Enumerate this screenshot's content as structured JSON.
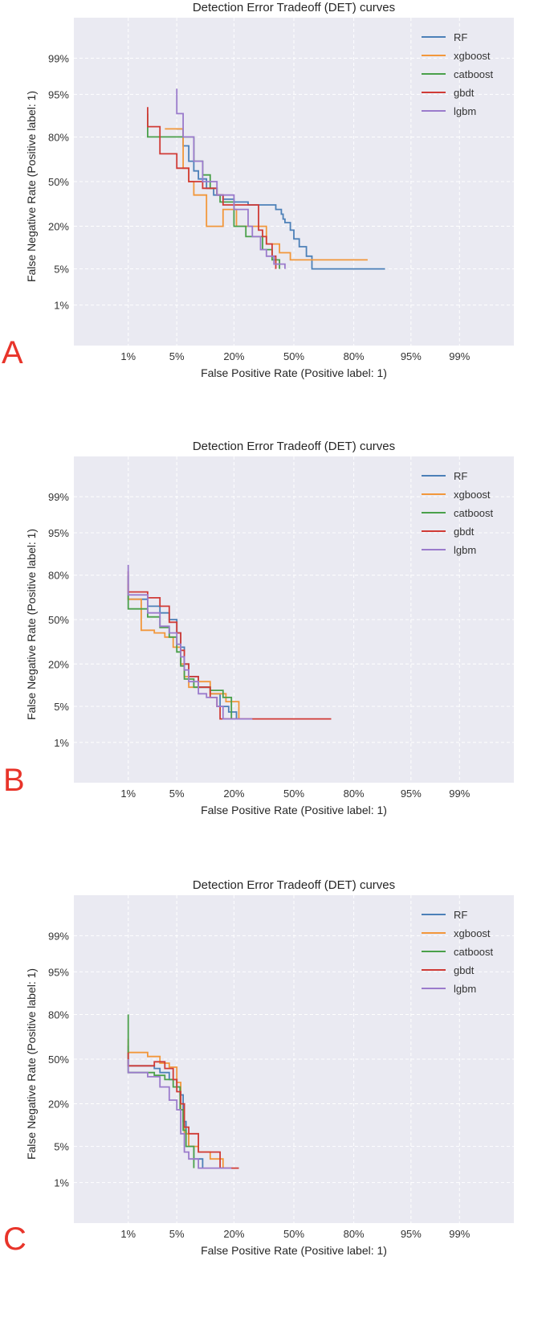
{
  "colors": {
    "RF": "#4c80b8",
    "xgboost": "#f2973b",
    "catboost": "#4aa04a",
    "gbdt": "#d03b36",
    "lgbm": "#9b7bcc",
    "panel_label": "#e8342a",
    "plot_bg": "#eaeaf2",
    "grid": "#ffffff"
  },
  "chart_data": [
    {
      "panel": "A",
      "type": "line",
      "title": "Detection Error Tradeoff (DET) curves",
      "xlabel": "False Positive Rate (Positive label: 1)",
      "ylabel": "False Negative Rate (Positive label: 1)",
      "xticks": [
        "1%",
        "5%",
        "20%",
        "50%",
        "80%",
        "95%",
        "99%"
      ],
      "yticks": [
        "1%",
        "5%",
        "20%",
        "50%",
        "80%",
        "95%",
        "99%"
      ],
      "xlim": [
        0.1,
        99.9
      ],
      "ylim": [
        0.1,
        99.9
      ],
      "scale": "probit",
      "grid": true,
      "legend": "top-right",
      "series": [
        {
          "name": "RF",
          "x": [
            5,
            6,
            6,
            7,
            7,
            8,
            8,
            9,
            9,
            11,
            11,
            13,
            13,
            16,
            16,
            20,
            20,
            26,
            26,
            40,
            40,
            43,
            43,
            44,
            44,
            45,
            45,
            48,
            48,
            50,
            50,
            53,
            53,
            57,
            57,
            60,
            60,
            90
          ],
          "y": [
            84,
            84,
            75,
            75,
            65,
            65,
            58,
            58,
            52,
            52,
            45,
            45,
            40,
            40,
            37,
            37,
            35,
            35,
            33,
            33,
            30,
            30,
            27,
            27,
            24,
            24,
            22,
            22,
            18,
            18,
            14,
            14,
            11,
            11,
            8,
            8,
            5,
            5
          ]
        },
        {
          "name": "xgboost",
          "x": [
            3.5,
            6,
            6,
            7,
            7,
            8,
            8,
            11,
            11,
            16,
            16,
            21,
            21,
            35,
            35,
            42,
            42,
            48,
            48,
            85
          ],
          "y": [
            84,
            84,
            60,
            60,
            50,
            50,
            40,
            40,
            20,
            20,
            30,
            30,
            20,
            20,
            12,
            12,
            9,
            9,
            7,
            7
          ]
        },
        {
          "name": "catboost",
          "x": [
            2,
            2,
            8,
            8,
            10,
            10,
            12,
            12,
            14,
            14,
            15,
            15,
            20,
            20,
            25,
            25,
            33,
            33,
            38,
            38,
            42,
            42
          ],
          "y": [
            90,
            80,
            80,
            65,
            65,
            55,
            55,
            45,
            45,
            40,
            40,
            35,
            35,
            20,
            20,
            15,
            15,
            10,
            10,
            7,
            7,
            5
          ]
        },
        {
          "name": "gbdt",
          "x": [
            2,
            2,
            3,
            3,
            5,
            5,
            7,
            7,
            10,
            10,
            14,
            14,
            16,
            16,
            31,
            31,
            33,
            33,
            35,
            35,
            38,
            38,
            40,
            40
          ],
          "y": [
            92,
            85,
            85,
            70,
            70,
            60,
            60,
            50,
            50,
            45,
            45,
            40,
            40,
            33,
            33,
            18,
            18,
            15,
            15,
            12,
            12,
            8,
            8,
            5
          ]
        },
        {
          "name": "lgbm",
          "x": [
            5,
            5,
            6,
            6,
            8,
            8,
            10,
            10,
            14,
            14,
            20,
            20,
            26,
            26,
            28,
            28,
            32,
            32,
            35,
            35,
            39,
            39,
            45,
            45
          ],
          "y": [
            96,
            90,
            90,
            80,
            80,
            65,
            65,
            50,
            50,
            40,
            40,
            30,
            30,
            20,
            20,
            15,
            15,
            10,
            10,
            8,
            8,
            6,
            6,
            5
          ]
        }
      ]
    },
    {
      "panel": "B",
      "type": "line",
      "title": "Detection Error Tradeoff (DET) curves",
      "xlabel": "False Positive Rate (Positive label: 1)",
      "ylabel": "False Negative Rate (Positive label: 1)",
      "xticks": [
        "1%",
        "5%",
        "20%",
        "50%",
        "80%",
        "95%",
        "99%"
      ],
      "yticks": [
        "1%",
        "5%",
        "20%",
        "50%",
        "80%",
        "95%",
        "99%"
      ],
      "xlim": [
        0.1,
        99.9
      ],
      "ylim": [
        0.1,
        99.9
      ],
      "scale": "probit",
      "grid": true,
      "legend": "top-right",
      "series": [
        {
          "name": "RF",
          "x": [
            1,
            1,
            2,
            2,
            3,
            3,
            4,
            4,
            5,
            5,
            5.6,
            5.6,
            6.2,
            6.2,
            7,
            7,
            9,
            9,
            12,
            12,
            15,
            15,
            18,
            18,
            21,
            21
          ],
          "y": [
            80,
            65,
            65,
            60,
            60,
            55,
            55,
            50,
            50,
            40,
            40,
            30,
            30,
            20,
            20,
            14,
            14,
            10,
            10,
            8,
            8,
            5,
            5,
            4,
            4,
            3
          ]
        },
        {
          "name": "xgboost",
          "x": [
            1,
            1,
            1.6,
            1.6,
            2.5,
            2.5,
            3.5,
            3.5,
            4.5,
            4.5,
            5.6,
            5.6,
            6.2,
            6.2,
            7,
            7,
            9,
            9,
            12,
            12,
            17,
            17,
            22,
            22
          ],
          "y": [
            75,
            65,
            65,
            42,
            42,
            40,
            40,
            37,
            37,
            30,
            30,
            20,
            20,
            14,
            14,
            10,
            10,
            12,
            12,
            8,
            8,
            6,
            6,
            3
          ]
        },
        {
          "name": "catboost",
          "x": [
            1,
            1,
            2,
            2,
            3,
            3,
            4,
            4,
            5,
            5,
            5.6,
            5.6,
            6.2,
            6.2,
            8,
            8,
            12,
            12,
            16,
            16,
            19,
            19
          ],
          "y": [
            70,
            58,
            58,
            52,
            52,
            44,
            44,
            37,
            37,
            27,
            27,
            19,
            19,
            13,
            13,
            10,
            10,
            9,
            9,
            7,
            7,
            3
          ]
        },
        {
          "name": "gbdt",
          "x": [
            1,
            1,
            2,
            2,
            3,
            3,
            4,
            4,
            5,
            5,
            5.6,
            5.6,
            6.2,
            6.2,
            7,
            7,
            9,
            9,
            12,
            12,
            14,
            14,
            15,
            15,
            70
          ],
          "y": [
            82,
            70,
            70,
            66,
            66,
            60,
            60,
            48,
            48,
            40,
            40,
            28,
            28,
            20,
            20,
            14,
            14,
            10,
            10,
            7,
            7,
            5,
            5,
            3,
            3
          ]
        },
        {
          "name": "lgbm",
          "x": [
            1,
            1,
            2,
            2,
            3,
            3,
            4,
            4,
            5,
            5,
            5.6,
            5.6,
            6.2,
            6.2,
            7,
            7,
            9,
            9,
            11,
            11,
            14,
            14,
            16,
            16,
            28
          ],
          "y": [
            85,
            68,
            68,
            55,
            55,
            45,
            45,
            40,
            40,
            32,
            32,
            24,
            24,
            17,
            17,
            12,
            12,
            8,
            8,
            7,
            7,
            5,
            5,
            3,
            3
          ]
        }
      ]
    },
    {
      "panel": "C",
      "type": "line",
      "title": "Detection Error Tradeoff (DET) curves",
      "xlabel": "False Positive Rate (Positive label: 1)",
      "ylabel": "False Negative Rate (Positive label: 1)",
      "xticks": [
        "1%",
        "5%",
        "20%",
        "50%",
        "80%",
        "95%",
        "99%"
      ],
      "yticks": [
        "1%",
        "5%",
        "20%",
        "50%",
        "80%",
        "95%",
        "99%"
      ],
      "xlim": [
        0.1,
        99.9
      ],
      "ylim": [
        0.1,
        99.9
      ],
      "scale": "probit",
      "grid": true,
      "legend": "top-right",
      "series": [
        {
          "name": "RF",
          "x": [
            1,
            1,
            2.5,
            2.5,
            3,
            3,
            4,
            4,
            5,
            5,
            5.5,
            5.5,
            6,
            6,
            6.5,
            6.5,
            7,
            7,
            8,
            8,
            10,
            10
          ],
          "y": [
            60,
            45,
            45,
            43,
            43,
            40,
            40,
            35,
            35,
            30,
            30,
            25,
            25,
            12,
            12,
            8,
            8,
            5,
            5,
            3,
            3,
            2
          ]
        },
        {
          "name": "xgboost",
          "x": [
            1,
            1,
            2,
            2,
            3,
            3,
            4,
            4,
            5,
            5,
            5.6,
            5.6,
            6.2,
            6.2,
            7,
            7,
            9,
            9,
            12,
            12,
            16,
            16
          ],
          "y": [
            65,
            55,
            55,
            52,
            52,
            47,
            47,
            44,
            44,
            33,
            33,
            17,
            17,
            8,
            8,
            5,
            5,
            4,
            4,
            3,
            3,
            2
          ]
        },
        {
          "name": "catboost",
          "x": [
            1,
            1,
            2.5,
            2.5,
            3.5,
            3.5,
            4.5,
            4.5,
            5.5,
            5.5,
            6,
            6,
            6.5,
            6.5,
            8,
            8
          ],
          "y": [
            80,
            40,
            40,
            38,
            38,
            35,
            35,
            30,
            30,
            17,
            17,
            9,
            9,
            5,
            5,
            2
          ]
        },
        {
          "name": "gbdt",
          "x": [
            1,
            1,
            2.5,
            2.5,
            3.5,
            3.5,
            4.5,
            4.5,
            5,
            5,
            5.6,
            5.6,
            6.2,
            6.2,
            7,
            7,
            9,
            9,
            15,
            15,
            22
          ],
          "y": [
            55,
            45,
            45,
            48,
            48,
            43,
            43,
            35,
            35,
            27,
            27,
            20,
            20,
            10,
            10,
            8,
            8,
            4,
            4,
            2,
            2
          ]
        },
        {
          "name": "lgbm",
          "x": [
            1,
            1,
            2,
            2,
            3,
            3,
            4,
            4,
            5,
            5,
            5.6,
            5.6,
            6.2,
            6.2,
            7,
            7,
            9,
            9,
            19
          ],
          "y": [
            50,
            40,
            40,
            37,
            37,
            30,
            30,
            22,
            22,
            17,
            17,
            8,
            8,
            4,
            4,
            3,
            3,
            2,
            2
          ]
        }
      ]
    }
  ]
}
